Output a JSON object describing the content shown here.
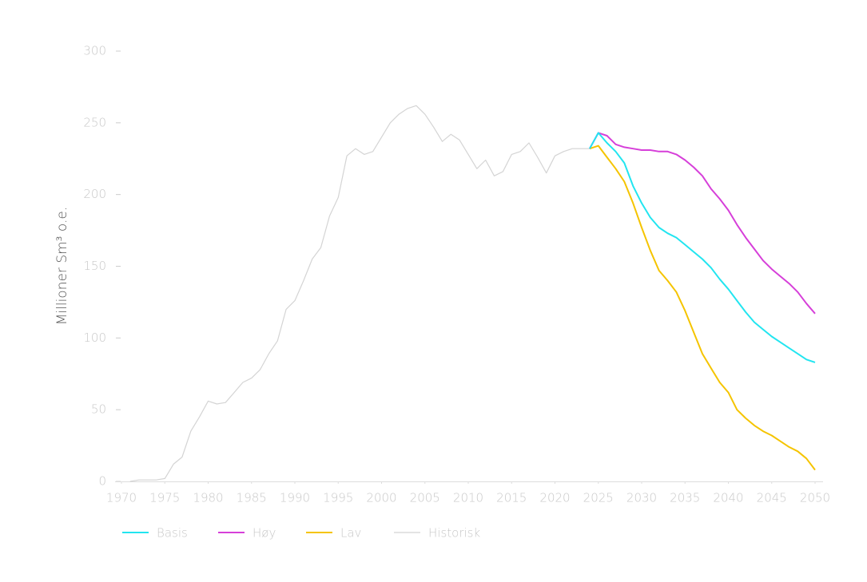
{
  "chart_data": {
    "type": "line",
    "y_label": "Millioner Sm³ o.e.",
    "x": [
      1971,
      1972,
      1973,
      1974,
      1975,
      1976,
      1977,
      1978,
      1979,
      1980,
      1981,
      1982,
      1983,
      1984,
      1985,
      1986,
      1987,
      1988,
      1989,
      1990,
      1991,
      1992,
      1993,
      1994,
      1995,
      1996,
      1997,
      1998,
      1999,
      2000,
      2001,
      2002,
      2003,
      2004,
      2005,
      2006,
      2007,
      2008,
      2009,
      2010,
      2011,
      2012,
      2013,
      2014,
      2015,
      2016,
      2017,
      2018,
      2019,
      2020,
      2021,
      2022,
      2023,
      2024,
      2025,
      2026,
      2027,
      2028,
      2029,
      2030,
      2031,
      2032,
      2033,
      2034,
      2035,
      2036,
      2037,
      2038,
      2039,
      2040,
      2041,
      2042,
      2043,
      2044,
      2045,
      2046,
      2047,
      2048,
      2049,
      2050
    ],
    "series": [
      {
        "name": "Basis",
        "color": "#22e5f0",
        "values": [
          null,
          null,
          null,
          null,
          null,
          null,
          null,
          null,
          null,
          null,
          null,
          null,
          null,
          null,
          null,
          null,
          null,
          null,
          null,
          null,
          null,
          null,
          null,
          null,
          null,
          null,
          null,
          null,
          null,
          null,
          null,
          null,
          null,
          null,
          null,
          null,
          null,
          null,
          null,
          null,
          null,
          null,
          null,
          null,
          null,
          null,
          null,
          null,
          null,
          null,
          null,
          null,
          null,
          232,
          243,
          236,
          230,
          222,
          206,
          194,
          184,
          177,
          173,
          170,
          165,
          160,
          155,
          149,
          141,
          134,
          126,
          118,
          111,
          106,
          101,
          97,
          93,
          89,
          85,
          83
        ]
      },
      {
        "name": "Høy",
        "color": "#d63fd9",
        "values": [
          null,
          null,
          null,
          null,
          null,
          null,
          null,
          null,
          null,
          null,
          null,
          null,
          null,
          null,
          null,
          null,
          null,
          null,
          null,
          null,
          null,
          null,
          null,
          null,
          null,
          null,
          null,
          null,
          null,
          null,
          null,
          null,
          null,
          null,
          null,
          null,
          null,
          null,
          null,
          null,
          null,
          null,
          null,
          null,
          null,
          null,
          null,
          null,
          null,
          null,
          null,
          null,
          null,
          232,
          243,
          241,
          235,
          233,
          232,
          231,
          231,
          230,
          230,
          228,
          224,
          219,
          213,
          204,
          197,
          189,
          179,
          170,
          162,
          154,
          148,
          143,
          138,
          132,
          124,
          117
        ]
      },
      {
        "name": "Lav",
        "color": "#f5c400",
        "values": [
          null,
          null,
          null,
          null,
          null,
          null,
          null,
          null,
          null,
          null,
          null,
          null,
          null,
          null,
          null,
          null,
          null,
          null,
          null,
          null,
          null,
          null,
          null,
          null,
          null,
          null,
          null,
          null,
          null,
          null,
          null,
          null,
          null,
          null,
          null,
          null,
          null,
          null,
          null,
          null,
          null,
          null,
          null,
          null,
          null,
          null,
          null,
          null,
          null,
          null,
          null,
          null,
          null,
          232,
          234,
          226,
          218,
          209,
          194,
          177,
          161,
          147,
          140,
          132,
          119,
          104,
          89,
          79,
          69,
          62,
          50,
          44,
          39,
          35,
          32,
          28,
          24,
          21,
          16,
          8
        ]
      },
      {
        "name": "Historisk",
        "color": "#d4d4d4",
        "values": [
          0,
          1,
          1,
          1,
          2,
          12,
          17,
          35,
          45,
          56,
          54,
          55,
          62,
          69,
          72,
          78,
          89,
          98,
          120,
          126,
          140,
          155,
          163,
          185,
          198,
          227,
          232,
          228,
          230,
          240,
          250,
          256,
          260,
          262,
          256,
          247,
          237,
          242,
          238,
          228,
          218,
          224,
          213,
          216,
          228,
          230,
          236,
          226,
          215,
          227,
          230,
          232,
          232,
          232,
          null,
          null,
          null,
          null,
          null,
          null,
          null,
          null,
          null,
          null,
          null,
          null,
          null,
          null,
          null,
          null,
          null,
          null,
          null,
          null,
          null,
          null,
          null,
          null,
          null,
          null
        ]
      }
    ],
    "xlim": [
      1970,
      2050
    ],
    "xticks": [
      1970,
      1975,
      1980,
      1985,
      1990,
      1995,
      2000,
      2005,
      2010,
      2015,
      2020,
      2025,
      2030,
      2035,
      2040,
      2045,
      2050
    ],
    "ylim": [
      0,
      300
    ],
    "yticks": [
      0,
      50,
      100,
      150,
      200,
      250,
      300
    ]
  }
}
